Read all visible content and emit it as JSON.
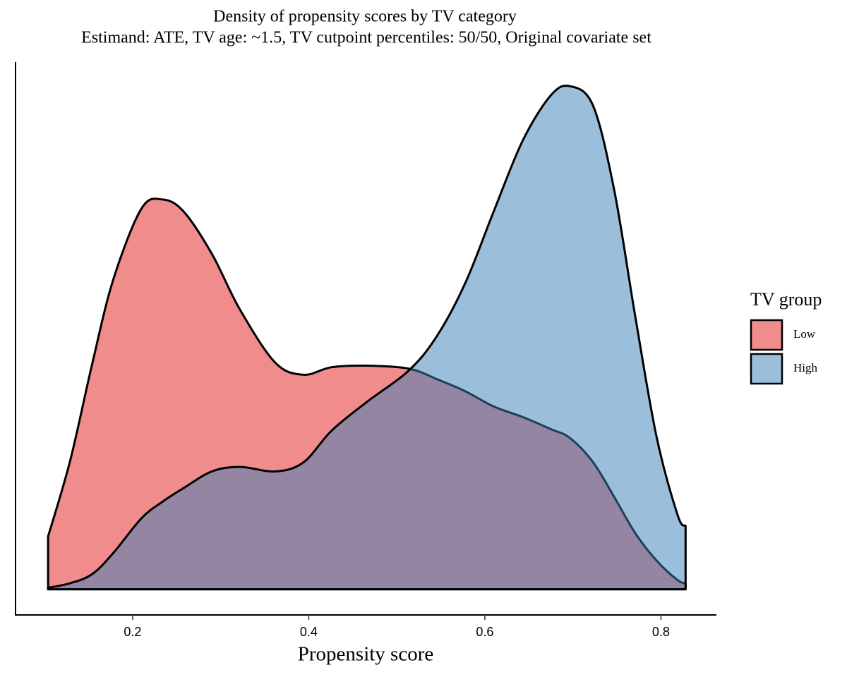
{
  "chart_data": {
    "type": "density",
    "title": "Density of propensity scores by TV category",
    "subtitle": "Estimand: ATE, TV age: ~1.5, TV cutpoint percentiles: 50/50, Original covariate set",
    "x_label": "Propensity score",
    "legend_title": "TV group",
    "legend_position": "right",
    "x": [
      0.104,
      0.129,
      0.154,
      0.178,
      0.21,
      0.234,
      0.258,
      0.29,
      0.322,
      0.362,
      0.394,
      0.426,
      0.466,
      0.514,
      0.546,
      0.578,
      0.61,
      0.643,
      0.675,
      0.697,
      0.723,
      0.747,
      0.771,
      0.795,
      0.819,
      0.828
    ],
    "series": [
      {
        "name": "Low",
        "color": "#E41A1C",
        "values": [
          0.35,
          0.85,
          1.49,
          2.05,
          2.52,
          2.58,
          2.5,
          2.22,
          1.85,
          1.5,
          1.42,
          1.47,
          1.48,
          1.46,
          1.39,
          1.31,
          1.21,
          1.14,
          1.06,
          1.0,
          0.84,
          0.61,
          0.37,
          0.19,
          0.06,
          0.04
        ]
      },
      {
        "name": "High",
        "color": "#377EB8",
        "values": [
          0.01,
          0.04,
          0.1,
          0.24,
          0.47,
          0.58,
          0.67,
          0.78,
          0.81,
          0.78,
          0.84,
          1.05,
          1.24,
          1.45,
          1.68,
          2.03,
          2.5,
          2.97,
          3.27,
          3.33,
          3.2,
          2.64,
          1.8,
          1.01,
          0.49,
          0.42
        ]
      }
    ],
    "xlim": [
      0.067,
      0.863
    ],
    "xticks": [
      0.2,
      0.4,
      0.6,
      0.8
    ],
    "ylim": [
      -0.17,
      3.49
    ]
  }
}
